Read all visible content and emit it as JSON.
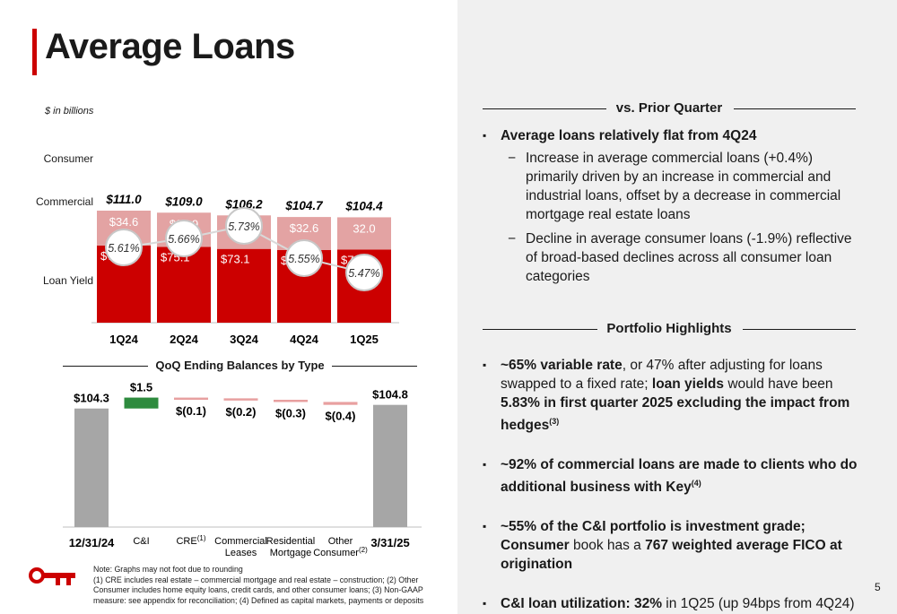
{
  "title": "Average Loans",
  "page_number": "5",
  "units": "$ in billions",
  "row_labels": {
    "consumer": "Consumer",
    "commercial": "Commercial",
    "loan_yield": "Loan Yield"
  },
  "colors": {
    "accent": "#cc0000",
    "consumer": "#e3a3a3",
    "commercial": "#cc0000",
    "gray": "#a6a6a6",
    "green": "#2e8b3e"
  },
  "chart_data": [
    {
      "type": "bar",
      "stacked": true,
      "categories": [
        "1Q24",
        "2Q24",
        "3Q24",
        "4Q24",
        "1Q25"
      ],
      "series": [
        {
          "name": "Commercial",
          "values": [
            76.4,
            75.1,
            73.1,
            72.1,
            72.4
          ],
          "labels": [
            "$76.4",
            "$75.1",
            "$73.1",
            "$72.1",
            "$72.4"
          ]
        },
        {
          "name": "Consumer",
          "values": [
            34.6,
            33.9,
            33.2,
            32.6,
            32.0
          ],
          "labels": [
            "$34.6",
            "$33.9",
            "$33.2",
            "$32.6",
            "32.0"
          ]
        }
      ],
      "totals": [
        111.0,
        109.0,
        106.2,
        104.7,
        104.4
      ],
      "total_labels": [
        "$111.0",
        "$109.0",
        "$106.2",
        "$104.7",
        "$104.4"
      ],
      "loan_yield": {
        "values": [
          5.61,
          5.66,
          5.73,
          5.55,
          5.47
        ],
        "labels": [
          "5.61%",
          "5.66%",
          "5.73%",
          "5.55%",
          "5.47%"
        ]
      },
      "ylim": [
        0,
        115
      ]
    },
    {
      "type": "waterfall",
      "title": "QoQ Ending Balances by Type",
      "bars": [
        {
          "label": "12/31/24",
          "label_bold": true,
          "value": 104.3,
          "kind": "total",
          "value_label": "$104.3"
        },
        {
          "label": "C&I",
          "sup": "",
          "value": 1.5,
          "kind": "increase",
          "value_label": "$1.5"
        },
        {
          "label": "CRE",
          "sup": "(1)",
          "value": -0.1,
          "kind": "decrease",
          "value_label": "$(0.1)"
        },
        {
          "label": "Commercial Leases",
          "sup": "",
          "value": -0.2,
          "kind": "decrease",
          "value_label": "$(0.2)"
        },
        {
          "label": "Residential Mortgage",
          "sup": "",
          "value": -0.3,
          "kind": "decrease",
          "value_label": "$(0.3)"
        },
        {
          "label": "Other Consumer",
          "sup": "(2)",
          "value": -0.4,
          "kind": "decrease",
          "value_label": "$(0.4)"
        },
        {
          "label": "3/31/25",
          "label_bold": true,
          "value": 104.8,
          "kind": "total",
          "value_label": "$104.8"
        }
      ]
    }
  ],
  "vs_prior": {
    "header": "vs. Prior Quarter",
    "main": "Average loans relatively flat from 4Q24",
    "sub1": "Increase in average commercial loans (+0.4%) primarily driven by an increase in commercial and industrial loans, offset by a decrease in commercial mortgage real estate loans",
    "sub2": "Decline in average consumer loans (-1.9%) reflective of broad-based declines across all consumer loan categories"
  },
  "portfolio": {
    "header": "Portfolio Highlights",
    "b1_bold1": "~65% variable rate",
    "b1_t1": ", or 47% after adjusting for loans swapped to a fixed rate; ",
    "b1_bold2": "loan yields",
    "b1_t2": " would have been ",
    "b1_bold3": "5.83% in first quarter 2025 excluding the impact from hedges",
    "b1_sup": "(3)",
    "b2_bold": "~92% of commercial loans are made to clients who do additional business with Key",
    "b2_sup": "(4)",
    "b3_bold1": "~55% of the C&I portfolio is investment grade; Consumer",
    "b3_t1": " book has a ",
    "b3_bold2": "767 weighted average FICO at origination",
    "b4_bold": "C&I loan utilization: 32%",
    "b4_t1": " in 1Q25 (up 94bps from 4Q24)"
  },
  "note": {
    "line1": "Note: Graphs may not foot due to rounding",
    "line2": "(1) CRE includes real estate – commercial mortgage and real estate – construction; (2) Other Consumer includes home equity loans, credit cards, and other consumer loans; (3) Non-GAAP measure: see appendix for reconciliation; (4) Defined as capital markets, payments or deposits"
  }
}
